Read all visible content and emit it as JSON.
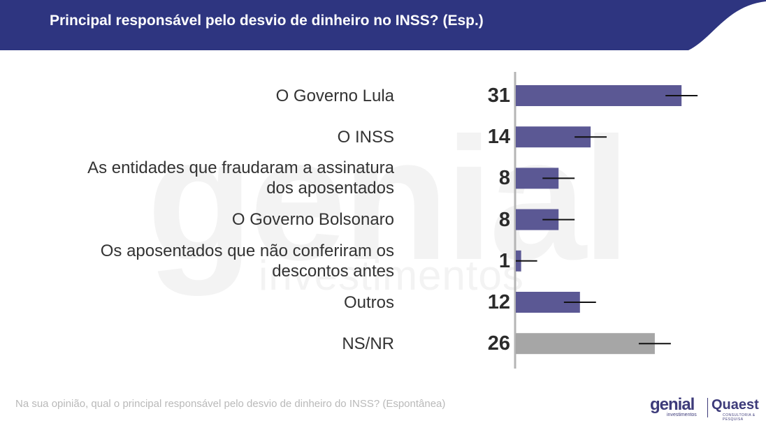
{
  "header": {
    "title": "Principal responsável pelo desvio de dinheiro no INSS? (Esp.)",
    "color": "#2e3580"
  },
  "watermark": {
    "main": "genial",
    "sub": "investimentos"
  },
  "chart_data": {
    "type": "bar",
    "orientation": "horizontal",
    "title": "Principal responsável pelo desvio de dinheiro no INSS? (Esp.)",
    "categories": [
      "O Governo Lula",
      "O INSS",
      "As entidades que fraudaram a assinatura dos aposentados",
      "O Governo Bolsonaro",
      "Os aposentados que não conferiram os descontos antes",
      "Outros",
      "NS/NR"
    ],
    "category_lines": [
      [
        "O Governo Lula"
      ],
      [
        "O INSS"
      ],
      [
        "As entidades que fraudaram a assinatura",
        "dos aposentados"
      ],
      [
        "O Governo Bolsonaro"
      ],
      [
        "Os aposentados que não conferiram os",
        "descontos antes"
      ],
      [
        "Outros"
      ],
      [
        "NS/NR"
      ]
    ],
    "values": [
      31,
      14,
      8,
      8,
      1,
      12,
      26
    ],
    "error_bars": true,
    "error_margin": 3,
    "bar_colors": [
      "#5b5894",
      "#5b5894",
      "#5b5894",
      "#5b5894",
      "#5b5894",
      "#5b5894",
      "#a6a6a6"
    ],
    "xlim": [
      0,
      35
    ],
    "grid": false,
    "xlabel": "",
    "ylabel": ""
  },
  "footnote": "Na sua opinião, qual o principal responsável pelo desvio de dinheiro do INSS? (Espontânea)",
  "logos": {
    "genial": "genial",
    "genial_sub": "investimentos",
    "quaest": "Quaest",
    "quaest_sub": "CONSULTORIA & PESQUISA"
  }
}
